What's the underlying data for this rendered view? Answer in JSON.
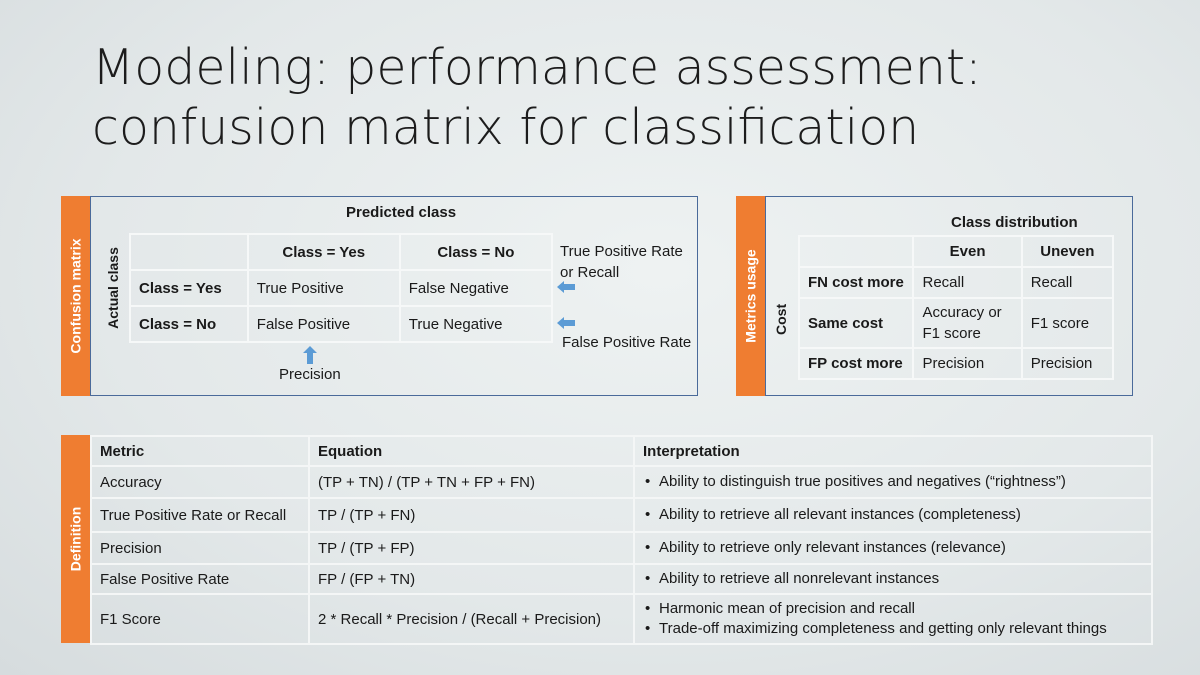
{
  "title": {
    "line1": "Modeling: performance assessment:",
    "line2": "confusion matrix for classification"
  },
  "confusion_matrix": {
    "tab_label": "Confusion matrix",
    "predicted_label": "Predicted class",
    "actual_label": "Actual class",
    "col_headers": [
      "Class = Yes",
      "Class = No"
    ],
    "rows": [
      {
        "label": "Class = Yes",
        "cells": [
          "True Positive",
          "False Negative"
        ]
      },
      {
        "label": "Class = No",
        "cells": [
          "False Positive",
          "True Negative"
        ]
      }
    ],
    "tpr_note_line1": "True Positive Rate",
    "tpr_note_line2": "or Recall",
    "fpr_note": "False Positive Rate",
    "precision_note": "Precision",
    "arrow_color": "#5b9bd5"
  },
  "metrics_usage": {
    "tab_label": "Metrics usage",
    "dist_label": "Class distribution",
    "cost_label": "Cost",
    "col_headers": [
      "Even",
      "Uneven"
    ],
    "rows": [
      {
        "label": "FN cost more",
        "even": "Recall",
        "uneven": "Recall"
      },
      {
        "label": "Same cost",
        "even_line1": "Accuracy or",
        "even_line2": "F1 score",
        "uneven": "F1 score"
      },
      {
        "label": "FP cost more",
        "even": "Precision",
        "uneven": "Precision"
      }
    ]
  },
  "definition": {
    "tab_label": "Definition",
    "headers": [
      "Metric",
      "Equation",
      "Interpretation"
    ],
    "rows": [
      {
        "metric": "Accuracy",
        "equation": "(TP + TN) / (TP + TN + FP + FN)",
        "interp": [
          "Ability to distinguish true positives and negatives (“rightness”)"
        ]
      },
      {
        "metric": "True Positive Rate or Recall",
        "equation": "TP / (TP + FN)",
        "interp": [
          "Ability to retrieve all relevant instances (completeness)"
        ]
      },
      {
        "metric": "Precision",
        "equation": "TP / (TP + FP)",
        "interp": [
          "Ability to retrieve only relevant instances (relevance)"
        ]
      },
      {
        "metric": "False Positive Rate",
        "equation": "FP / (FP + TN)",
        "interp": [
          "Ability to retrieve all nonrelevant instances"
        ]
      },
      {
        "metric": "F1 Score",
        "equation": "2 * Recall * Precision / (Recall + Precision)",
        "interp": [
          "Harmonic mean of precision and recall",
          "Trade-off maximizing completeness and getting only relevant things"
        ]
      }
    ]
  },
  "colors": {
    "accent": "#ef7d31",
    "panel_border": "#4a6a9a",
    "cell_border": "#f6f8f8"
  }
}
